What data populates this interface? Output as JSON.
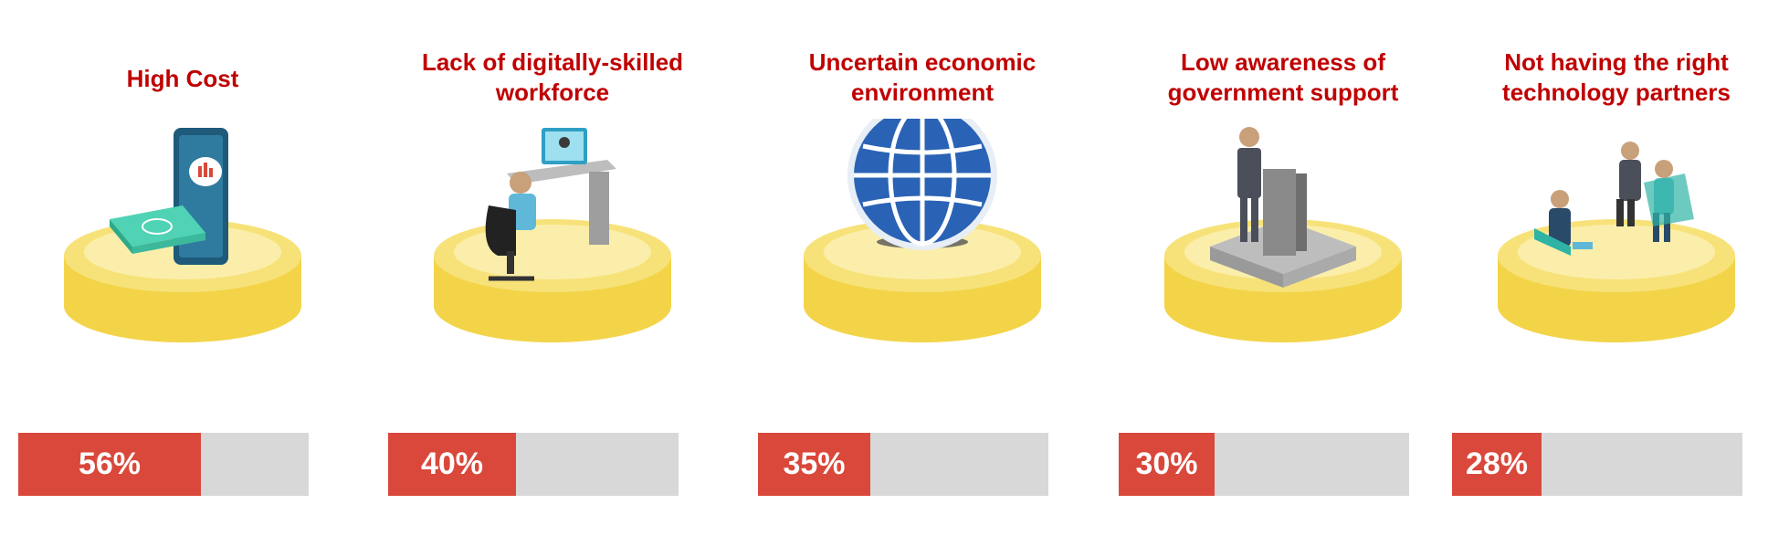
{
  "chart_data": {
    "type": "bar",
    "categories": [
      "High Cost",
      "Lack of digitally-skilled workforce",
      "Uncertain economic environment",
      "Low awareness of government support",
      "Not having the right technology partners"
    ],
    "values": [
      56,
      40,
      35,
      30,
      28
    ],
    "value_labels": [
      "56%",
      "40%",
      "35%",
      "30%",
      "28%"
    ],
    "ylim": [
      0,
      100
    ],
    "title": "",
    "xlabel": "",
    "ylabel": ""
  },
  "items": [
    {
      "title_lines": [
        "High Cost"
      ],
      "value": 56,
      "label": "56%",
      "icon": "money-phone-icon"
    },
    {
      "title_lines": [
        "Lack of digitally-skilled",
        "workforce"
      ],
      "value": 40,
      "label": "40%",
      "icon": "desk-worker-icon"
    },
    {
      "title_lines": [
        "Uncertain economic",
        "environment"
      ],
      "value": 35,
      "label": "35%",
      "icon": "globe-icon"
    },
    {
      "title_lines": [
        "Low awareness of",
        "government support"
      ],
      "value": 30,
      "label": "30%",
      "icon": "speaker-podium-icon"
    },
    {
      "title_lines": [
        "Not having the right",
        "technology partners"
      ],
      "value": 28,
      "label": "28%",
      "icon": "meeting-people-icon"
    }
  ],
  "colors": {
    "title": "#c00000",
    "bar_fill": "#d9483b",
    "bar_track": "#d8d8d8",
    "podium": "#f5d94c",
    "podium_top": "#fbeeaa"
  }
}
